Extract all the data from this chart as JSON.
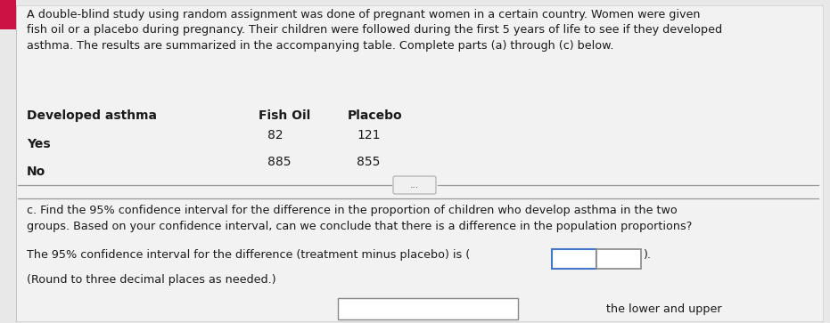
{
  "bg_color": "#e8e8e8",
  "panel_color": "#f2f2f2",
  "intro_text": "A double-blind study using random assignment was done of pregnant women in a certain country. Women were given\nfish oil or a placebo during pregnancy. Their children were followed during the first 5 years of life to see if they developed\nasthma. The results are summarized in the accompanying table. Complete parts (a) through (c) below.",
  "table_header_col1": "Developed asthma",
  "table_header_col2": "Fish Oil",
  "table_header_col3": "Placebo",
  "table_row1_label": "Yes",
  "table_row1_val1": "82",
  "table_row1_val2": "121",
  "table_row2_label": "No",
  "table_row2_val1": "885",
  "table_row2_val2": "855",
  "divider_button_text": "...",
  "part_c_text": "c. Find the 95% confidence interval for the difference in the proportion of children who develop asthma in the two\ngroups. Based on your confidence interval, can we conclude that there is a difference in the population proportions?",
  "answer_line1": "The 95% confidence interval for the difference (treatment ̲minus placebo) is (",
  "answer_line1_clean": "The 95% confidence interval for the difference (treatment minus placebo) is (",
  "answer_line2": "(Round to three decimal places as needed.)",
  "bottom_hint": "the lower and upper",
  "text_color": "#1a1a1a",
  "divider_color": "#999999",
  "red_accent": "#cc1144",
  "box1_edge": "#4477cc",
  "box2_edge": "#888888",
  "font_size_intro": 9.2,
  "font_size_table_header": 10.0,
  "font_size_table_data": 10.0,
  "font_size_body": 9.2
}
